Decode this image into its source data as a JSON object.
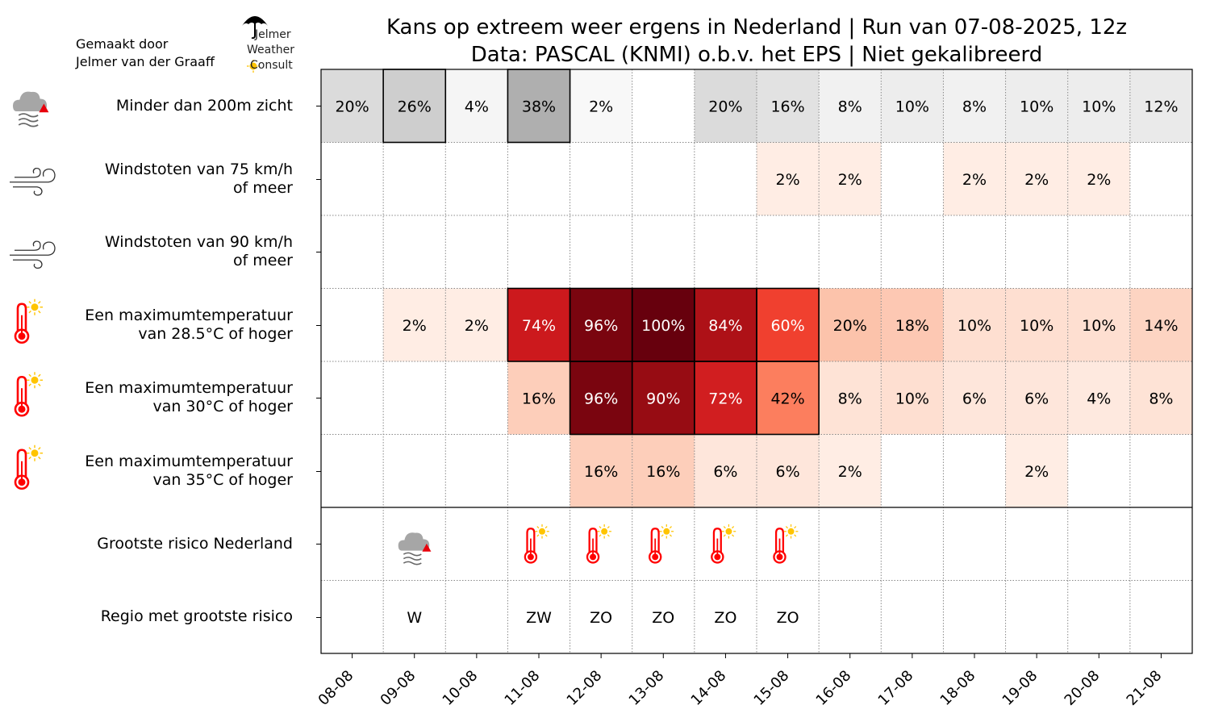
{
  "header": {
    "title_line1": "Kans op extreem weer ergens in Nederland | Run van 07-08-2025, 12z",
    "title_line2": "Data: PASCAL (KNMI) o.b.v. het EPS | Niet gekalibreerd",
    "credit_line1": "Gemaakt door",
    "credit_line2": "Jelmer van der Graaff",
    "logo": {
      "line1": "Jelmer",
      "line2": "Weather",
      "line3": "Consult"
    }
  },
  "chart_data": {
    "type": "heatmap",
    "title": "Kans op extreem weer ergens in Nederland | Run van 07-08-2025, 12z",
    "subtitle": "Data: PASCAL (KNMI) o.b.v. het EPS | Niet gekalibreerd",
    "x": [
      "08-08",
      "09-08",
      "10-08",
      "11-08",
      "12-08",
      "13-08",
      "14-08",
      "15-08",
      "16-08",
      "17-08",
      "18-08",
      "19-08",
      "20-08",
      "21-08"
    ],
    "colormap_primary": "Greys (fog row), Reds (other rows)",
    "rows": [
      {
        "label_line1": "Minder dan 200m zicht",
        "label_line2": "",
        "icon": "fog-warning-icon",
        "colormap": "greys",
        "values": [
          20,
          26,
          4,
          38,
          2,
          0,
          20,
          16,
          8,
          10,
          8,
          10,
          10,
          12
        ],
        "highlight": [
          false,
          true,
          false,
          true,
          false,
          false,
          false,
          false,
          false,
          false,
          false,
          false,
          false,
          false
        ]
      },
      {
        "label_line1": "Windstoten van 75 km/h",
        "label_line2": "of meer",
        "icon": "wind-icon",
        "colormap": "reds",
        "values": [
          0,
          0,
          0,
          0,
          0,
          0,
          0,
          2,
          2,
          0,
          2,
          2,
          2,
          0
        ],
        "highlight": [
          false,
          false,
          false,
          false,
          false,
          false,
          false,
          false,
          false,
          false,
          false,
          false,
          false,
          false
        ]
      },
      {
        "label_line1": "Windstoten van 90 km/h",
        "label_line2": "of meer",
        "icon": "wind-icon",
        "colormap": "reds",
        "values": [
          0,
          0,
          0,
          0,
          0,
          0,
          0,
          0,
          0,
          0,
          0,
          0,
          0,
          0
        ],
        "highlight": [
          false,
          false,
          false,
          false,
          false,
          false,
          false,
          false,
          false,
          false,
          false,
          false,
          false,
          false
        ]
      },
      {
        "label_line1": "Een maximumtemperatuur",
        "label_line2": "van 28.5°C of hoger",
        "icon": "thermometer-sun-icon",
        "colormap": "reds",
        "values": [
          0,
          2,
          2,
          74,
          96,
          100,
          84,
          60,
          20,
          18,
          10,
          10,
          10,
          14
        ],
        "highlight": [
          false,
          false,
          false,
          true,
          true,
          true,
          true,
          true,
          false,
          false,
          false,
          false,
          false,
          false
        ]
      },
      {
        "label_line1": "Een maximumtemperatuur",
        "label_line2": "van 30°C of hoger",
        "icon": "thermometer-sun-icon",
        "colormap": "reds",
        "values": [
          0,
          0,
          0,
          16,
          96,
          90,
          72,
          42,
          8,
          10,
          6,
          6,
          4,
          8
        ],
        "highlight": [
          false,
          false,
          false,
          false,
          true,
          true,
          true,
          true,
          false,
          false,
          false,
          false,
          false,
          false
        ]
      },
      {
        "label_line1": "Een maximumtemperatuur",
        "label_line2": "van 35°C of hoger",
        "icon": "thermometer-sun-icon",
        "colormap": "reds",
        "values": [
          0,
          0,
          0,
          0,
          16,
          16,
          6,
          6,
          2,
          0,
          0,
          2,
          0,
          0
        ],
        "highlight": [
          false,
          false,
          false,
          false,
          false,
          false,
          false,
          false,
          false,
          false,
          false,
          false,
          false,
          false
        ]
      }
    ],
    "risk_row": {
      "label": "Grootste risico Nederland",
      "icons": [
        "",
        "fog-warning-icon",
        "",
        "thermometer-sun-icon",
        "thermometer-sun-icon",
        "thermometer-sun-icon",
        "thermometer-sun-icon",
        "thermometer-sun-icon",
        "",
        "",
        "",
        "",
        "",
        ""
      ]
    },
    "region_row": {
      "label": "Regio met grootste risico",
      "values": [
        "",
        "W",
        "",
        "ZW",
        "ZO",
        "ZO",
        "ZO",
        "ZO",
        "",
        "",
        "",
        "",
        "",
        ""
      ]
    },
    "value_suffix": "%",
    "grid": true
  },
  "colors": {
    "thermo": "#ff0000",
    "sun": "#ffc400",
    "cloud": "#a6a6a6",
    "warn": "#e8000b"
  }
}
